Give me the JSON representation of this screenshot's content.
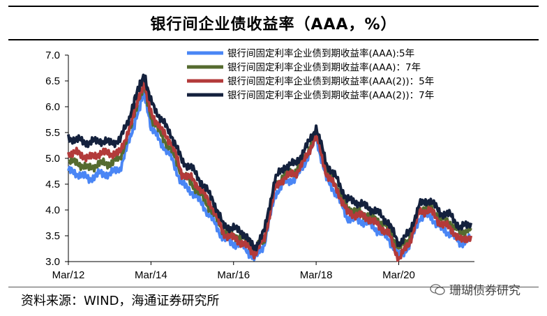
{
  "title": "银行间企业债收益率（AAA，%）",
  "source": "资料来源：WIND，海通证券研究所",
  "watermark": "珊瑚债券研究",
  "chart_data": {
    "type": "line",
    "x": [
      "2012-03",
      "2012-06",
      "2012-09",
      "2012-12",
      "2013-03",
      "2013-06",
      "2013-09",
      "2013-11",
      "2014-01",
      "2014-03",
      "2014-06",
      "2014-09",
      "2014-12",
      "2015-03",
      "2015-06",
      "2015-09",
      "2015-12",
      "2016-03",
      "2016-06",
      "2016-09",
      "2016-12",
      "2017-03",
      "2017-06",
      "2017-09",
      "2017-12",
      "2018-03",
      "2018-06",
      "2018-09",
      "2018-12",
      "2019-03",
      "2019-06",
      "2019-09",
      "2019-12",
      "2020-03",
      "2020-06",
      "2020-09",
      "2020-12",
      "2021-03",
      "2021-06",
      "2021-09",
      "2021-12"
    ],
    "series": [
      {
        "name": "银行间固定利率企业债到期收益率(AAA):5年",
        "color": "#4a86f5",
        "values": [
          4.75,
          4.7,
          4.6,
          4.7,
          4.7,
          4.8,
          5.4,
          5.85,
          6.3,
          5.6,
          5.3,
          5.0,
          4.5,
          4.35,
          4.1,
          3.8,
          3.45,
          3.35,
          3.3,
          3.05,
          3.35,
          4.3,
          4.55,
          4.6,
          4.95,
          5.4,
          4.6,
          4.3,
          3.85,
          3.8,
          3.75,
          3.6,
          3.45,
          3.1,
          3.3,
          3.85,
          3.9,
          3.65,
          3.55,
          3.35,
          3.45
        ]
      },
      {
        "name": "银行间固定利率企业债到期收益率(AAA)：7年",
        "color": "#556b2f",
        "values": [
          4.95,
          4.9,
          4.8,
          4.9,
          4.9,
          5.0,
          5.6,
          6.05,
          6.45,
          5.8,
          5.45,
          5.15,
          4.7,
          4.5,
          4.25,
          3.95,
          3.6,
          3.5,
          3.45,
          3.2,
          3.45,
          4.45,
          4.7,
          4.75,
          5.05,
          5.5,
          4.75,
          4.45,
          4.05,
          3.95,
          3.9,
          3.8,
          3.65,
          3.25,
          3.45,
          4.0,
          4.05,
          3.85,
          3.75,
          3.55,
          3.65
        ]
      },
      {
        "name": "银行间固定利率企业债到期收益率(AAA(2))：5年",
        "color": "#b33a3a",
        "values": [
          5.1,
          5.1,
          5.0,
          5.1,
          5.1,
          5.1,
          5.65,
          6.1,
          6.45,
          5.9,
          5.55,
          5.3,
          4.7,
          4.6,
          4.35,
          4.05,
          3.55,
          3.45,
          3.35,
          3.15,
          3.45,
          4.4,
          4.65,
          4.7,
          5.0,
          5.45,
          4.7,
          4.4,
          3.95,
          3.9,
          3.85,
          3.7,
          3.55,
          3.05,
          3.35,
          3.95,
          4.0,
          3.75,
          3.65,
          3.4,
          3.5
        ]
      },
      {
        "name": "银行间固定利率企业债到期收益率(AAA(2))：7年",
        "color": "#14213d",
        "values": [
          5.4,
          5.35,
          5.3,
          5.35,
          5.3,
          5.35,
          5.85,
          6.3,
          6.6,
          6.1,
          5.75,
          5.45,
          4.95,
          4.8,
          4.5,
          4.2,
          3.7,
          3.65,
          3.55,
          3.25,
          3.6,
          4.6,
          4.85,
          4.9,
          5.2,
          5.6,
          4.9,
          4.6,
          4.2,
          4.15,
          4.05,
          3.95,
          3.75,
          3.35,
          3.55,
          4.1,
          4.2,
          3.95,
          3.9,
          3.65,
          3.75
        ]
      }
    ],
    "x_ticks": [
      "Mar/12",
      "Mar/14",
      "Mar/16",
      "Mar/18",
      "Mar/20"
    ],
    "y_ticks": [
      "3.0",
      "3.5",
      "4.0",
      "4.5",
      "5.0",
      "5.5",
      "6.0",
      "6.5",
      "7.0"
    ],
    "ylim": [
      3.0,
      7.0
    ],
    "legend_position": "top-right",
    "grid": false
  }
}
